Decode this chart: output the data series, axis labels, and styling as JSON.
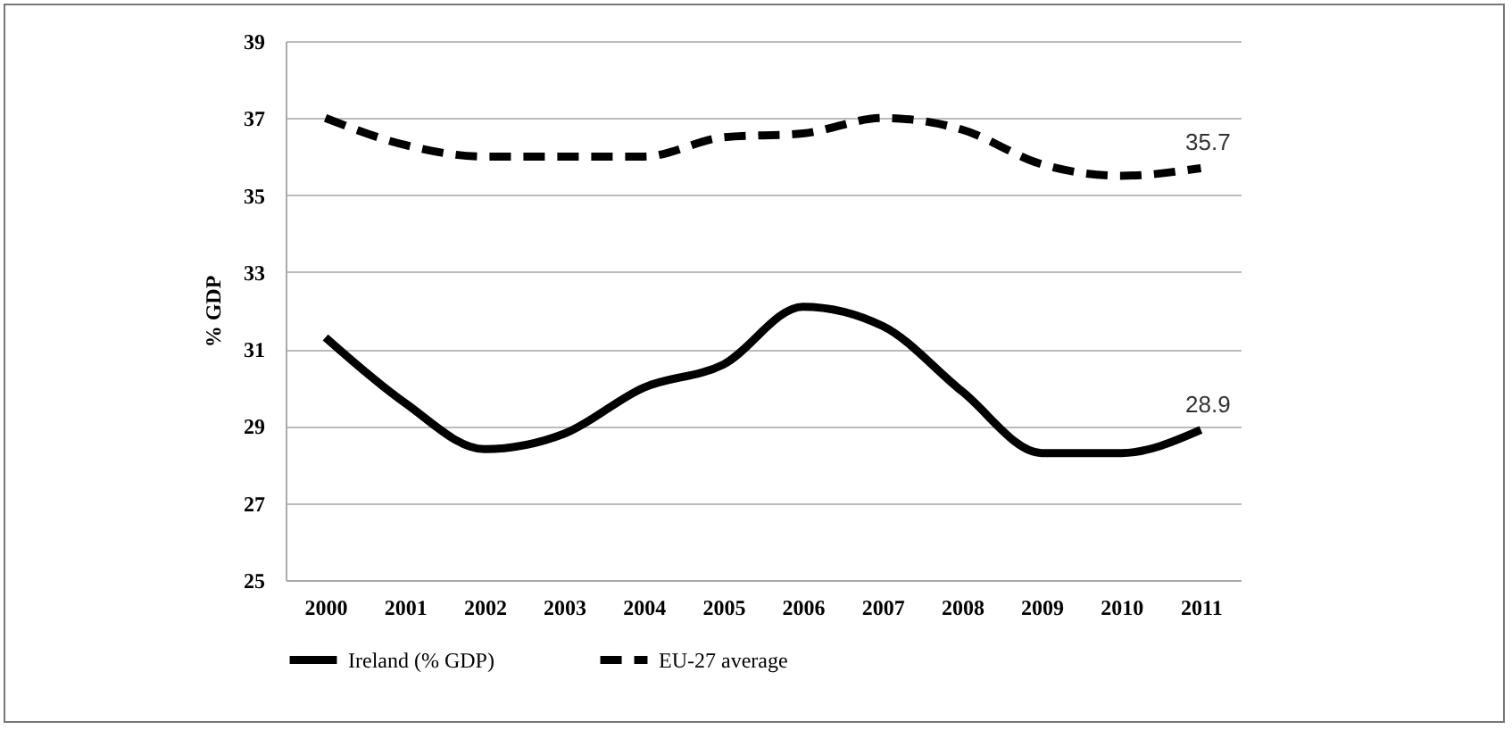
{
  "chart_data": {
    "type": "line",
    "ylabel": "% GDP",
    "categories": [
      "2000",
      "2001",
      "2002",
      "2003",
      "2004",
      "2005",
      "2006",
      "2007",
      "2008",
      "2009",
      "2010",
      "2011"
    ],
    "series": [
      {
        "name": "Ireland (% GDP)",
        "color": "#000000",
        "line_style": "solid",
        "values": [
          31.3,
          29.6,
          28.4,
          28.8,
          30.0,
          30.6,
          32.1,
          31.6,
          29.9,
          28.3,
          28.3,
          28.9
        ],
        "value_labels": [
          null,
          null,
          null,
          null,
          null,
          null,
          null,
          null,
          null,
          null,
          null,
          "28.9"
        ]
      },
      {
        "name": "EU-27 average",
        "color": "#000000",
        "line_style": "dashed",
        "values": [
          37.0,
          36.3,
          36.0,
          36.0,
          36.0,
          36.5,
          36.6,
          37.0,
          36.7,
          35.8,
          35.5,
          35.7
        ],
        "value_labels": [
          null,
          null,
          null,
          null,
          null,
          null,
          null,
          null,
          null,
          null,
          null,
          "35.7"
        ]
      }
    ],
    "ylim": [
      25,
      39
    ],
    "yticks": [
      25,
      27,
      29,
      31,
      33,
      35,
      37,
      39
    ],
    "grid": "y",
    "legend": "bottom",
    "marker": "none"
  }
}
